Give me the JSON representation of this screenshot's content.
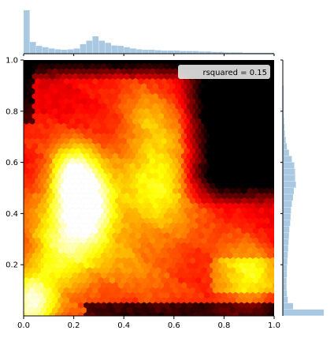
{
  "chart_data": {
    "type": "heatmap",
    "subtype": "jointplot-hexbin",
    "title": "",
    "xlabel": "",
    "ylabel": "",
    "xlim": [
      0,
      1.0
    ],
    "ylim": [
      0,
      1.0
    ],
    "x_ticks": [
      "0.0",
      "0.2",
      "0.4",
      "0.6",
      "0.8",
      "1.0"
    ],
    "y_ticks": [
      "0.2",
      "0.4",
      "0.6",
      "0.8",
      "1.0"
    ],
    "annotation": "rsquared = 0.15",
    "annotation_position": "top-right",
    "colormap": "hot",
    "density_hotspots": [
      {
        "x": 0.2,
        "y": 0.53,
        "intensity": 1.0
      },
      {
        "x": 0.26,
        "y": 0.42,
        "intensity": 0.85
      },
      {
        "x": 0.03,
        "y": 0.04,
        "intensity": 0.95
      },
      {
        "x": 0.55,
        "y": 0.55,
        "intensity": 0.45
      },
      {
        "x": 0.5,
        "y": 0.78,
        "intensity": 0.35
      },
      {
        "x": 0.9,
        "y": 0.14,
        "intensity": 0.5
      },
      {
        "x": 0.15,
        "y": 0.25,
        "intensity": 0.55
      }
    ],
    "marginal_x": {
      "bins": 40,
      "range": [
        0,
        1
      ],
      "heights": [
        1.0,
        0.27,
        0.18,
        0.15,
        0.12,
        0.1,
        0.09,
        0.1,
        0.12,
        0.22,
        0.3,
        0.4,
        0.3,
        0.25,
        0.19,
        0.18,
        0.15,
        0.12,
        0.1,
        0.09,
        0.09,
        0.08,
        0.07,
        0.07,
        0.07,
        0.06,
        0.06,
        0.06,
        0.05,
        0.05,
        0.04,
        0.04,
        0.03,
        0.03,
        0.03,
        0.02,
        0.02,
        0.02,
        0.02,
        0.02
      ]
    },
    "marginal_y": {
      "bins": 40,
      "range": [
        0,
        1
      ],
      "heights": [
        1.0,
        0.25,
        0.12,
        0.1,
        0.09,
        0.09,
        0.1,
        0.1,
        0.11,
        0.12,
        0.13,
        0.14,
        0.15,
        0.16,
        0.18,
        0.19,
        0.2,
        0.22,
        0.25,
        0.27,
        0.32,
        0.3,
        0.3,
        0.28,
        0.22,
        0.15,
        0.1,
        0.07,
        0.05,
        0.04,
        0.03,
        0.02,
        0.02,
        0.02,
        0.02,
        0.02,
        0.01,
        0.01,
        0.01,
        0.01
      ]
    },
    "colors": {
      "marginal_fill": "#a9c9e3",
      "axis": "#000000",
      "legend_bg": "#e6e6e6"
    }
  }
}
